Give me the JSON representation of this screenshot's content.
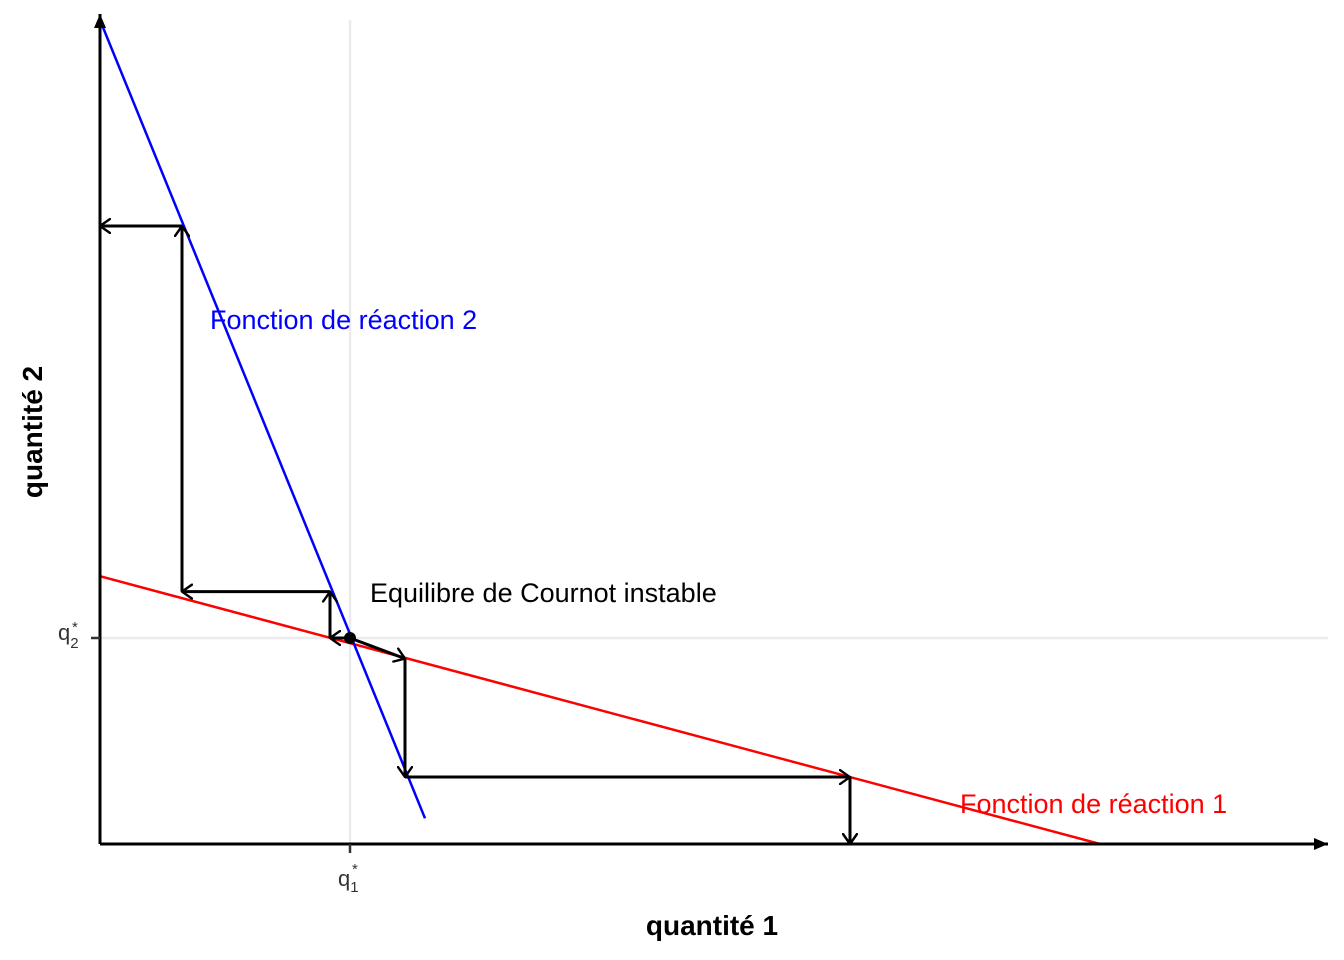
{
  "chart_data": {
    "type": "line",
    "title": "",
    "xlabel": "quantité 1",
    "ylabel": "quantité 2",
    "xlim": [
      0,
      12
    ],
    "ylim": [
      0,
      8
    ],
    "colors": {
      "axis": "#000000",
      "grid": "#ebebeb",
      "tick": "#333333",
      "reaction1": "#ff0000",
      "reaction2": "#0000ff",
      "arrows": "#000000",
      "equilibrium": "#000000"
    },
    "series": [
      {
        "name": "Fonction de réaction 1",
        "color": "#ff0000",
        "x": [
          0,
          10
        ],
        "y": [
          2.6,
          0
        ]
      },
      {
        "name": "Fonction de réaction 2",
        "color": "#0000ff",
        "x": [
          0,
          3.25
        ],
        "y": [
          8.0,
          0.25
        ]
      }
    ],
    "x_ticks": [
      {
        "value": 2.5,
        "label": "q",
        "sub": "1",
        "sup": "*"
      }
    ],
    "y_ticks": [
      {
        "value": 2.0,
        "label": "q",
        "sub": "2",
        "sup": "*"
      }
    ],
    "equilibrium": {
      "x": 2.5,
      "y": 2.0,
      "label": "Equilibre de Cournot instable"
    },
    "annotations": {
      "reaction1_label": {
        "text": "Fonction de réaction 1",
        "x": 8.6,
        "y": 0.3
      },
      "reaction2_label": {
        "text": "Fonction de réaction 2",
        "x": 1.1,
        "y": 5.0
      },
      "equilibrium_label": {
        "text": "Equilibre de Cournot instable",
        "x": 2.7,
        "y": 2.35
      }
    },
    "cobweb_paths": [
      [
        [
          2.5,
          2.0
        ],
        [
          3.05,
          1.8
        ],
        [
          3.05,
          0.65
        ],
        [
          7.5,
          0.65
        ],
        [
          7.5,
          0.0
        ]
      ],
      [
        [
          2.5,
          2.0
        ],
        [
          2.3,
          2.0
        ],
        [
          2.3,
          2.45
        ],
        [
          0.82,
          2.45
        ],
        [
          0.82,
          6.0
        ],
        [
          0.0,
          6.0
        ]
      ]
    ]
  }
}
